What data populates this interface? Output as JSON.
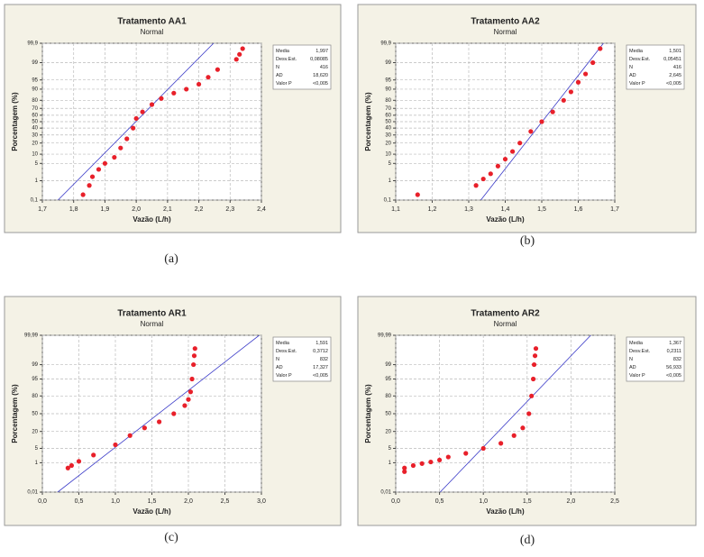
{
  "chart_data": [
    {
      "type": "scatter",
      "title": "Tratamento AA1",
      "subtitle": "Normal",
      "caption": "(a)",
      "x_label": "Vazão (L/h)",
      "y_label": "Porcentagem (%)",
      "scale": "probability",
      "grid": true,
      "color": "#e8202a",
      "line_color": "#3a3ac8",
      "x": [
        1.83,
        1.85,
        1.86,
        1.88,
        1.9,
        1.93,
        1.95,
        1.97,
        1.99,
        2.0,
        2.02,
        2.05,
        2.08,
        2.12,
        2.16,
        2.2,
        2.23,
        2.26,
        2.32,
        2.33,
        2.34
      ],
      "values": [
        0.2,
        0.6,
        1.5,
        3,
        5,
        8,
        15,
        25,
        40,
        55,
        65,
        75,
        82,
        87,
        90,
        93,
        96,
        98,
        99.3,
        99.6,
        99.8
      ],
      "fit": {
        "x": [
          1.75,
          2.247
        ],
        "values": [
          0.1,
          99.9
        ]
      },
      "xlim": [
        1.7,
        2.4
      ],
      "xticks": [
        {
          "value": 1.7,
          "label": "1,7"
        },
        {
          "value": 1.8,
          "label": "1,8"
        },
        {
          "value": 1.9,
          "label": "1,9"
        },
        {
          "value": 2.0,
          "label": "2,0"
        },
        {
          "value": 2.1,
          "label": "2,1"
        },
        {
          "value": 2.2,
          "label": "2,2"
        },
        {
          "value": 2.3,
          "label": "2,3"
        },
        {
          "value": 2.4,
          "label": "2,4"
        }
      ],
      "ylim": [
        0.1,
        99.9
      ],
      "yticks": [
        {
          "value": 0.1,
          "label": "0,1"
        },
        1,
        5,
        10,
        20,
        30,
        40,
        50,
        60,
        70,
        80,
        90,
        95,
        99,
        {
          "value": 99.9,
          "label": "99,9"
        }
      ],
      "stats": [
        {
          "label": "Media",
          "value": "1,997"
        },
        {
          "label": "Desv.Est.",
          "value": "0,08085"
        },
        {
          "label": "N",
          "value": "416"
        },
        {
          "label": "AD",
          "value": "18,620"
        },
        {
          "label": "Valor P",
          "value": "<0,005"
        }
      ]
    },
    {
      "type": "scatter",
      "title": "Tratamento AA2",
      "subtitle": "Normal",
      "caption": "(b)",
      "x_label": "Vazão (L/h)",
      "y_label": "Porcentagem (%)",
      "scale": "probability",
      "grid": true,
      "color": "#e8202a",
      "line_color": "#3a3ac8",
      "x": [
        1.16,
        1.32,
        1.34,
        1.36,
        1.38,
        1.4,
        1.42,
        1.44,
        1.47,
        1.5,
        1.53,
        1.56,
        1.58,
        1.6,
        1.62,
        1.64,
        1.66
      ],
      "values": [
        0.2,
        0.6,
        1.2,
        2,
        4,
        7,
        12,
        20,
        35,
        50,
        65,
        80,
        88,
        94,
        97,
        99,
        99.8
      ],
      "fit": {
        "x": [
          1.333,
          1.669
        ],
        "values": [
          0.1,
          99.9
        ]
      },
      "xlim": [
        1.1,
        1.7
      ],
      "xticks": [
        {
          "value": 1.1,
          "label": "1,1"
        },
        {
          "value": 1.2,
          "label": "1,2"
        },
        {
          "value": 1.3,
          "label": "1,3"
        },
        {
          "value": 1.4,
          "label": "1,4"
        },
        {
          "value": 1.5,
          "label": "1,5"
        },
        {
          "value": 1.6,
          "label": "1,6"
        },
        {
          "value": 1.7,
          "label": "1,7"
        }
      ],
      "ylim": [
        0.1,
        99.9
      ],
      "yticks": [
        {
          "value": 0.1,
          "label": "0,1"
        },
        1,
        5,
        10,
        20,
        30,
        40,
        50,
        60,
        70,
        80,
        90,
        95,
        99,
        {
          "value": 99.9,
          "label": "99,9"
        }
      ],
      "stats": [
        {
          "label": "Media",
          "value": "1,501"
        },
        {
          "label": "Desv.Est.",
          "value": "0,05451"
        },
        {
          "label": "N",
          "value": "416"
        },
        {
          "label": "AD",
          "value": "2,645"
        },
        {
          "label": "Valor P",
          "value": "<0,005"
        }
      ]
    },
    {
      "type": "scatter",
      "title": "Tratamento AR1",
      "subtitle": "Normal",
      "caption": "(c)",
      "x_label": "Vazão (L/h)",
      "y_label": "Porcentagem (%)",
      "scale": "probability",
      "grid": true,
      "color": "#e8202a",
      "line_color": "#3a3ac8",
      "x": [
        0.35,
        0.4,
        0.5,
        0.7,
        1.0,
        1.2,
        1.4,
        1.6,
        1.8,
        1.95,
        2.0,
        2.03,
        2.05,
        2.07,
        2.08,
        2.09
      ],
      "values": [
        0.5,
        0.7,
        1.2,
        2.5,
        7,
        15,
        25,
        35,
        50,
        65,
        75,
        85,
        95,
        99,
        99.7,
        99.9
      ],
      "fit": {
        "x": [
          0.21,
          2.97
        ],
        "values": [
          0.01,
          99.99
        ]
      },
      "xlim": [
        0,
        3
      ],
      "xticks": [
        {
          "value": 0,
          "label": "0,0"
        },
        {
          "value": 0.5,
          "label": "0,5"
        },
        {
          "value": 1,
          "label": "1,0"
        },
        {
          "value": 1.5,
          "label": "1,5"
        },
        {
          "value": 2,
          "label": "2,0"
        },
        {
          "value": 2.5,
          "label": "2,5"
        },
        {
          "value": 3,
          "label": "3,0"
        }
      ],
      "ylim": [
        0.01,
        99.99
      ],
      "yticks": [
        {
          "value": 0.01,
          "label": "0,01"
        },
        1,
        5,
        20,
        50,
        80,
        95,
        99,
        {
          "value": 99.99,
          "label": "99,99"
        }
      ],
      "stats": [
        {
          "label": "Media",
          "value": "1,591"
        },
        {
          "label": "Desv.Est.",
          "value": "0,3712"
        },
        {
          "label": "N",
          "value": "832"
        },
        {
          "label": "AD",
          "value": "17,327"
        },
        {
          "label": "Valor P",
          "value": "<0,005"
        }
      ]
    },
    {
      "type": "scatter",
      "title": "Tratamento AR2",
      "subtitle": "Normal",
      "caption": "(d)",
      "x_label": "Vazão (L/h)",
      "y_label": "Porcentagem (%)",
      "scale": "probability",
      "grid": true,
      "color": "#e8202a",
      "line_color": "#3a3ac8",
      "x": [
        0.1,
        0.1,
        0.2,
        0.3,
        0.4,
        0.5,
        0.6,
        0.8,
        1.0,
        1.2,
        1.35,
        1.45,
        1.52,
        1.55,
        1.57,
        1.58,
        1.59,
        1.6
      ],
      "values": [
        0.3,
        0.5,
        0.7,
        0.9,
        1.1,
        1.4,
        2,
        3,
        5,
        8,
        15,
        25,
        50,
        80,
        95,
        99,
        99.7,
        99.9
      ],
      "fit": {
        "x": [
          0.507,
          2.226
        ],
        "values": [
          0.01,
          99.99
        ]
      },
      "xlim": [
        0,
        2.5
      ],
      "xticks": [
        {
          "value": 0,
          "label": "0,0"
        },
        {
          "value": 0.5,
          "label": "0,5"
        },
        {
          "value": 1,
          "label": "1,0"
        },
        {
          "value": 1.5,
          "label": "1,5"
        },
        {
          "value": 2,
          "label": "2,0"
        },
        {
          "value": 2.5,
          "label": "2,5"
        }
      ],
      "ylim": [
        0.01,
        99.99
      ],
      "yticks": [
        {
          "value": 0.01,
          "label": "0,01"
        },
        1,
        5,
        20,
        50,
        80,
        95,
        99,
        {
          "value": 99.99,
          "label": "99,99"
        }
      ],
      "stats": [
        {
          "label": "Media",
          "value": "1,367"
        },
        {
          "label": "Desv.Est.",
          "value": "0,2311"
        },
        {
          "label": "N",
          "value": "832"
        },
        {
          "label": "AD",
          "value": "56,933"
        },
        {
          "label": "Valor P",
          "value": "<0,005"
        }
      ]
    }
  ]
}
